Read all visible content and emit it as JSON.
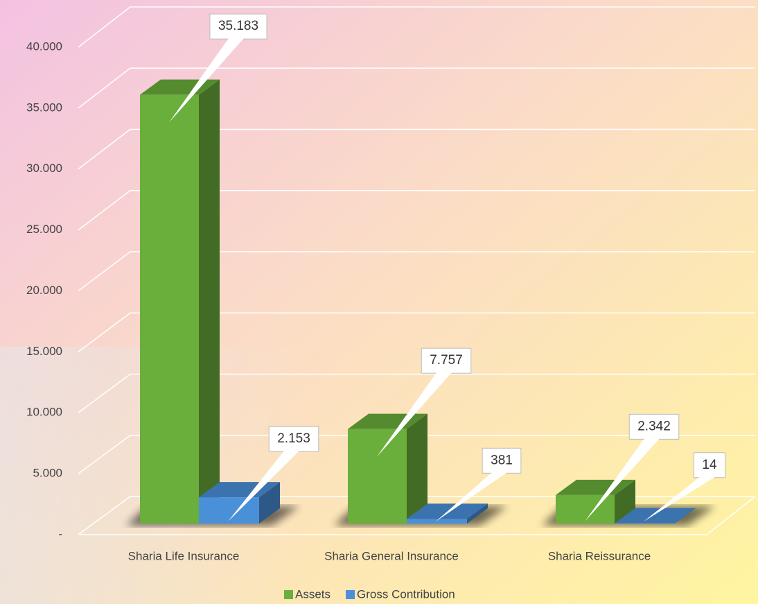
{
  "chart_data": {
    "type": "bar3d",
    "categories": [
      "Sharia Life Insurance",
      "Sharia General Insurance",
      "Sharia Reissurance"
    ],
    "series": [
      {
        "name": "Assets",
        "color": "#6aae3b",
        "values": [
          35183,
          7757,
          2342
        ],
        "value_labels": [
          "35.183",
          "7.757",
          "2.342"
        ]
      },
      {
        "name": "Gross Contribution",
        "color": "#4a90d9",
        "values": [
          2153,
          381,
          14
        ],
        "value_labels": [
          "2.153",
          "381",
          "14"
        ]
      }
    ],
    "ylim": [
      0,
      40000
    ],
    "yticks": [
      {
        "value": 0,
        "label": "-"
      },
      {
        "value": 5000,
        "label": "5.000"
      },
      {
        "value": 10000,
        "label": "10.000"
      },
      {
        "value": 15000,
        "label": "15.000"
      },
      {
        "value": 20000,
        "label": "20.000"
      },
      {
        "value": 25000,
        "label": "25.000"
      },
      {
        "value": 30000,
        "label": "30.000"
      },
      {
        "value": 35000,
        "label": "35.000"
      },
      {
        "value": 40000,
        "label": "40.000"
      }
    ],
    "grid": true,
    "legend": "bottom"
  }
}
